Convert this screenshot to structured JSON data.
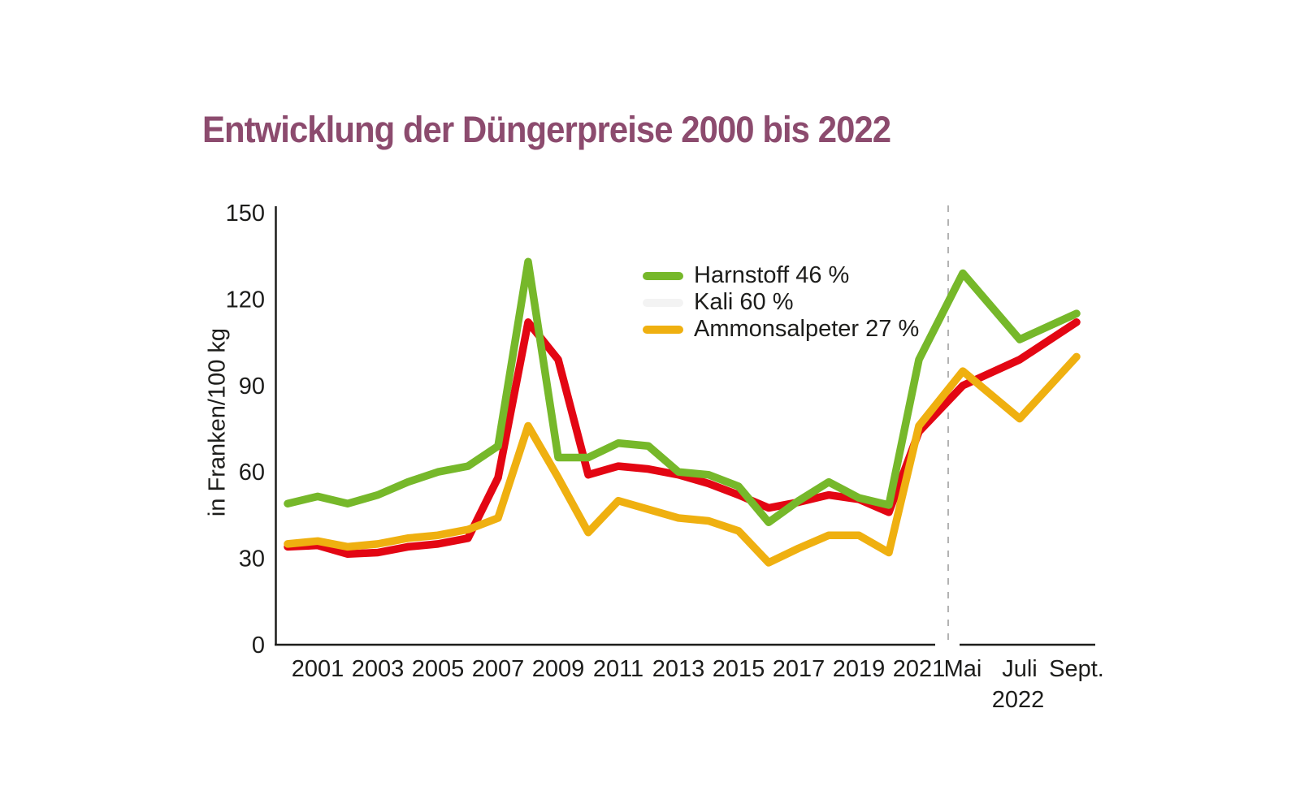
{
  "page": {
    "title": "Entwicklung der Düngerpreise 2000 bis 2022"
  },
  "colors": {
    "title_text": "#8c4b6e",
    "axis": "#1d1d1b",
    "divider_dashed": "#b3b3b3",
    "harnstoff_line": "#76b82a",
    "kali_line": "#e30613",
    "ammonsalpeter_line": "#efb010",
    "kali_legend_swatch": "#f3f3f3"
  },
  "chart_data": {
    "type": "line",
    "title": "Entwicklung der Düngerpreise 2000 bis 2022",
    "xlabel": "",
    "ylabel": "in Franken/100 kg",
    "ylim": [
      0,
      150
    ],
    "yticks": [
      0,
      30,
      60,
      90,
      120,
      150
    ],
    "grid": false,
    "legend_position": "upper-center-inside",
    "x_annual": [
      2000,
      2001,
      2002,
      2003,
      2004,
      2005,
      2006,
      2007,
      2008,
      2009,
      2010,
      2011,
      2012,
      2013,
      2014,
      2015,
      2016,
      2017,
      2018,
      2019,
      2020,
      2021
    ],
    "x_axis_tick_labels": [
      "2001",
      "2003",
      "2005",
      "2007",
      "2009",
      "2011",
      "2013",
      "2015",
      "2017",
      "2019",
      "2021"
    ],
    "x_2022": {
      "tick_labels": [
        "Mai",
        "Juli",
        "Sept."
      ],
      "year_label": "2022",
      "divider": "dashed vertical line between 2021 and Mai 2022"
    },
    "series": [
      {
        "id": "harnstoff",
        "name": "Harnstoff 46 %",
        "color": "#76b82a",
        "legend_color": "#76b82a",
        "values_annual": [
          49,
          51.5,
          49,
          52,
          56.5,
          60,
          62,
          69,
          133,
          65,
          65,
          70,
          69,
          60,
          59,
          55,
          42.5,
          50,
          56.5,
          51,
          48.5,
          99
        ],
        "values_2022_mai_juli_sept": [
          129,
          106,
          115
        ]
      },
      {
        "id": "kali",
        "name": "Kali 60 %",
        "color": "#e30613",
        "legend_color": "#f3f3f3",
        "values_annual": [
          34,
          34.5,
          31.5,
          32,
          34,
          35,
          37,
          58,
          112,
          99,
          59,
          62,
          61,
          59,
          56,
          52,
          47.5,
          49.5,
          52,
          50.5,
          46,
          74
        ],
        "values_2022_mai_juli_sept": [
          90,
          99,
          112
        ]
      },
      {
        "id": "ammonsalpeter",
        "name": "Ammonsalpeter 27 %",
        "color": "#efb010",
        "legend_color": "#efb010",
        "values_annual": [
          35,
          36,
          34,
          35,
          37,
          38,
          40,
          44,
          76,
          58,
          39,
          50,
          47,
          44,
          43,
          39.5,
          28.5,
          33.5,
          38,
          38,
          32,
          76
        ],
        "values_2022_mai_juli_sept": [
          95,
          78.5,
          100
        ]
      }
    ]
  }
}
